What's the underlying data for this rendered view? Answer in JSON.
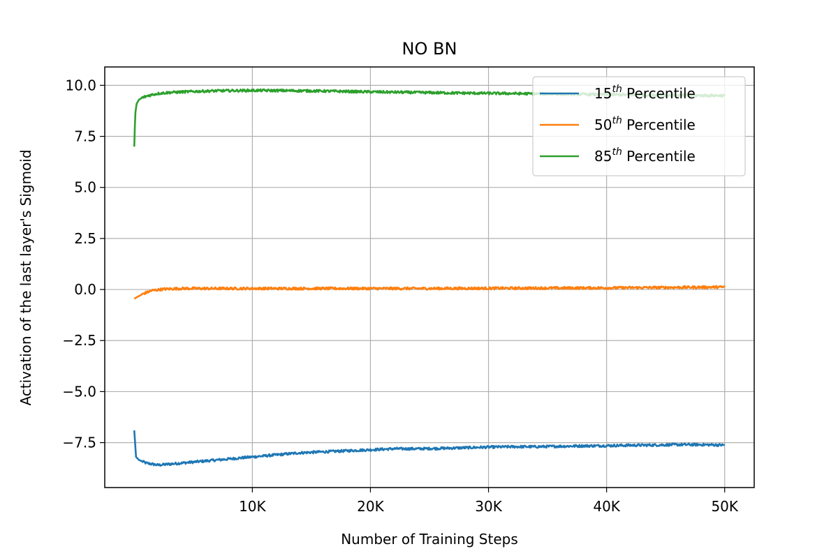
{
  "chart_data": {
    "type": "line",
    "title": "NO BN",
    "xlabel": "Number of Training Steps",
    "ylabel": "Activation of the last layer's Sigmoid",
    "xlim": [
      -2500,
      52500
    ],
    "ylim": [
      -9.7,
      10.9
    ],
    "x_ticks": [
      10000,
      20000,
      30000,
      40000,
      50000
    ],
    "x_tick_labels": [
      "10K",
      "20K",
      "30K",
      "40K",
      "50K"
    ],
    "y_ticks": [
      10.0,
      7.5,
      5.0,
      2.5,
      0.0,
      -2.5,
      -5.0,
      -7.5
    ],
    "y_tick_labels": [
      "10.0",
      "7.5",
      "5.0",
      "2.5",
      "0.0",
      "−2.5",
      "−5.0",
      "−7.5"
    ],
    "grid": true,
    "legend_position": "top-right",
    "series": [
      {
        "name_num": "15",
        "name_sup": "th",
        "name_text": "Percentile",
        "color": "#1f77b4",
        "x": [
          0,
          150,
          400,
          1000,
          2000,
          3000,
          4000,
          5000,
          6000,
          7000,
          8000,
          9000,
          10000,
          12000,
          14000,
          16000,
          18000,
          20000,
          22000,
          24000,
          26000,
          28000,
          30000,
          32000,
          34000,
          36000,
          38000,
          40000,
          42000,
          44000,
          46000,
          48000,
          50000
        ],
        "values": [
          -6.9,
          -8.2,
          -8.35,
          -8.5,
          -8.6,
          -8.55,
          -8.5,
          -8.45,
          -8.4,
          -8.35,
          -8.3,
          -8.25,
          -8.2,
          -8.1,
          -8.0,
          -7.95,
          -7.9,
          -7.85,
          -7.8,
          -7.8,
          -7.78,
          -7.75,
          -7.72,
          -7.7,
          -7.7,
          -7.68,
          -7.66,
          -7.65,
          -7.63,
          -7.62,
          -7.6,
          -7.6,
          -7.62
        ]
      },
      {
        "name_num": "50",
        "name_sup": "th",
        "name_text": "Percentile",
        "color": "#ff7f0e",
        "x": [
          0,
          300,
          800,
          1500,
          2500,
          4000,
          6000,
          10000,
          15000,
          20000,
          25000,
          30000,
          35000,
          40000,
          45000,
          50000
        ],
        "values": [
          -0.45,
          -0.35,
          -0.2,
          -0.05,
          0.02,
          0.05,
          0.05,
          0.05,
          0.05,
          0.05,
          0.05,
          0.06,
          0.07,
          0.08,
          0.1,
          0.12
        ]
      },
      {
        "name_num": "85",
        "name_sup": "th",
        "name_text": "Percentile",
        "color": "#2ca02c",
        "x": [
          0,
          80,
          200,
          400,
          700,
          1200,
          2000,
          3000,
          5000,
          7000,
          10000,
          13000,
          16000,
          20000,
          24000,
          28000,
          32000,
          36000,
          40000,
          44000,
          48000,
          50000
        ],
        "values": [
          7.0,
          8.6,
          9.1,
          9.3,
          9.4,
          9.5,
          9.6,
          9.65,
          9.7,
          9.73,
          9.75,
          9.74,
          9.72,
          9.68,
          9.65,
          9.62,
          9.6,
          9.57,
          9.55,
          9.52,
          9.5,
          9.5
        ]
      }
    ]
  }
}
